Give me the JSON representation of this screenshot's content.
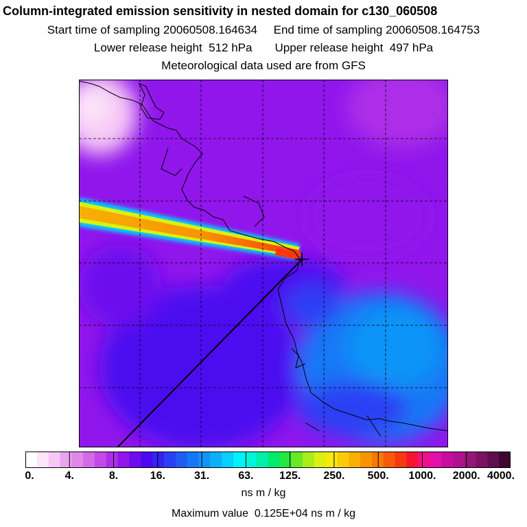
{
  "header": {
    "title": "Column-integrated emission sensitivity in nested domain for c130_060508",
    "start_label": "Start time of sampling 20060508.164634",
    "end_label": "End time of sampling 20060508.164753",
    "lower_label": "Lower release height  512 hPa",
    "upper_label": "Upper release height  497 hPa",
    "met_label": "Meteorological data used are from GFS"
  },
  "chart_data": {
    "type": "heatmap",
    "title": "Column-integrated emission sensitivity in nested domain for c130_060508",
    "colorbar": {
      "scale": "log",
      "tick_labels": [
        "0.",
        "4.",
        "8.",
        "16.",
        "31.",
        "63.",
        "125.",
        "250.",
        "500.",
        "1000.",
        "2000.",
        "4000."
      ],
      "tick_values": [
        0,
        4,
        8,
        16,
        31,
        63,
        125,
        250,
        500,
        1000,
        2000,
        4000
      ],
      "colors": [
        "#ffffff",
        "#fde6fb",
        "#f6c8f6",
        "#eaa4ee",
        "#df88ea",
        "#d36be8",
        "#c44ae8",
        "#ac2ee8",
        "#9016ec",
        "#6d0cee",
        "#4c08f0",
        "#3622f2",
        "#2a40f4",
        "#1e5cf4",
        "#1478f6",
        "#1094f8",
        "#0cb0fa",
        "#06d0fc",
        "#00f0fc",
        "#00f4d8",
        "#00f0a8",
        "#00ea70",
        "#22e840",
        "#6ae826",
        "#a8ec18",
        "#dcf010",
        "#f8e80c",
        "#f8cc08",
        "#f8b004",
        "#f89402",
        "#f87806",
        "#f85a0a",
        "#f8380e",
        "#f81430",
        "#f0108a",
        "#e010a8",
        "#c80ca0",
        "#b0128e",
        "#961678",
        "#7a1262",
        "#5e0e4c",
        "#40082e"
      ],
      "units": "ns m / kg"
    },
    "max_value_label": "Maximum value  0.125E+04 ns m / kg",
    "max_value": 1250,
    "receptor_marker": "+",
    "grid": true,
    "background_range": [
      8,
      31
    ],
    "plume_range": [
      125,
      1250
    ]
  }
}
